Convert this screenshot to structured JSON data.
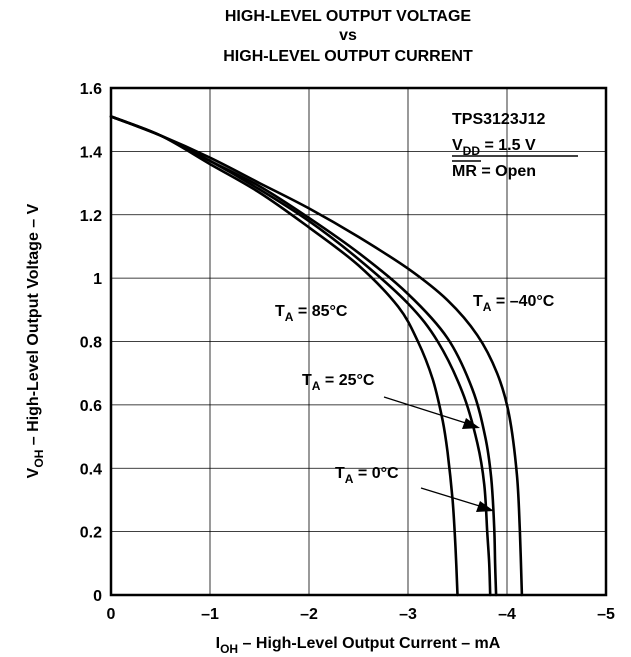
{
  "chart_data": {
    "type": "line",
    "title": [
      "HIGH-LEVEL OUTPUT VOLTAGE",
      "vs",
      "HIGH-LEVEL OUTPUT CURRENT"
    ],
    "xlabel": {
      "main": "I",
      "sub": "OH",
      "rest": " – High-Level Output Current – mA"
    },
    "ylabel": {
      "main": "V",
      "sub": "OH",
      "rest": " – High-Level Output Voltage – V"
    },
    "xlim": [
      0,
      -5
    ],
    "ylim": [
      0,
      1.6
    ],
    "grid": true,
    "xticks": [
      {
        "value": 0,
        "label": "0"
      },
      {
        "value": -1,
        "label": "–1"
      },
      {
        "value": -2,
        "label": "–2"
      },
      {
        "value": -3,
        "label": "–3"
      },
      {
        "value": -4,
        "label": "–4"
      },
      {
        "value": -5,
        "label": "–5"
      }
    ],
    "yticks": [
      {
        "value": 0,
        "label": "0"
      },
      {
        "value": 0.2,
        "label": "0.2"
      },
      {
        "value": 0.4,
        "label": "0.4"
      },
      {
        "value": 0.6,
        "label": "0.6"
      },
      {
        "value": 0.8,
        "label": "0.8"
      },
      {
        "value": 1,
        "label": "1"
      },
      {
        "value": 1.2,
        "label": "1.2"
      },
      {
        "value": 1.4,
        "label": "1.4"
      },
      {
        "value": 1.6,
        "label": "1.6"
      }
    ],
    "legend_box": [
      {
        "main": "TPS3123J12"
      },
      {
        "main": "V",
        "sub": "DD",
        "rest": " = 1.5 V",
        "underline": true
      },
      {
        "main": "MR",
        "rest": " = Open",
        "overline": true
      }
    ],
    "series": [
      {
        "label": {
          "main": "T",
          "sub": "A",
          "rest": " = 85°C"
        },
        "x": [
          0,
          -0.5,
          -1,
          -1.5,
          -2,
          -2.5,
          -2.9,
          -3.1,
          -3.25,
          -3.35,
          -3.4,
          -3.45,
          -3.48,
          -3.5
        ],
        "y": [
          1.51,
          1.45,
          1.36,
          1.27,
          1.16,
          1.04,
          0.91,
          0.8,
          0.68,
          0.55,
          0.45,
          0.3,
          0.15,
          0
        ]
      },
      {
        "label": {
          "main": "T",
          "sub": "A",
          "rest": " = 25°C"
        },
        "x": [
          0,
          -0.5,
          -1,
          -1.5,
          -2,
          -2.5,
          -3,
          -3.3,
          -3.55,
          -3.7,
          -3.77,
          -3.8,
          -3.82,
          -3.83
        ],
        "y": [
          1.51,
          1.45,
          1.37,
          1.28,
          1.18,
          1.06,
          0.92,
          0.8,
          0.64,
          0.48,
          0.35,
          0.2,
          0.1,
          0
        ]
      },
      {
        "label": {
          "main": "T",
          "sub": "A",
          "rest": " = 0°C"
        },
        "x": [
          0,
          -0.5,
          -1,
          -1.5,
          -2,
          -2.5,
          -3,
          -3.4,
          -3.65,
          -3.78,
          -3.84,
          -3.87,
          -3.88,
          -3.89
        ],
        "y": [
          1.51,
          1.45,
          1.37,
          1.29,
          1.19,
          1.08,
          0.95,
          0.81,
          0.65,
          0.5,
          0.37,
          0.22,
          0.1,
          0
        ]
      },
      {
        "label": {
          "main": "T",
          "sub": "A",
          "rest": " = –40°C"
        },
        "x": [
          0,
          -0.5,
          -1,
          -1.5,
          -2,
          -2.5,
          -3,
          -3.4,
          -3.7,
          -3.9,
          -4.02,
          -4.1,
          -4.13,
          -4.15
        ],
        "y": [
          1.51,
          1.45,
          1.38,
          1.3,
          1.22,
          1.13,
          1.03,
          0.93,
          0.82,
          0.7,
          0.57,
          0.38,
          0.2,
          0
        ]
      }
    ]
  }
}
